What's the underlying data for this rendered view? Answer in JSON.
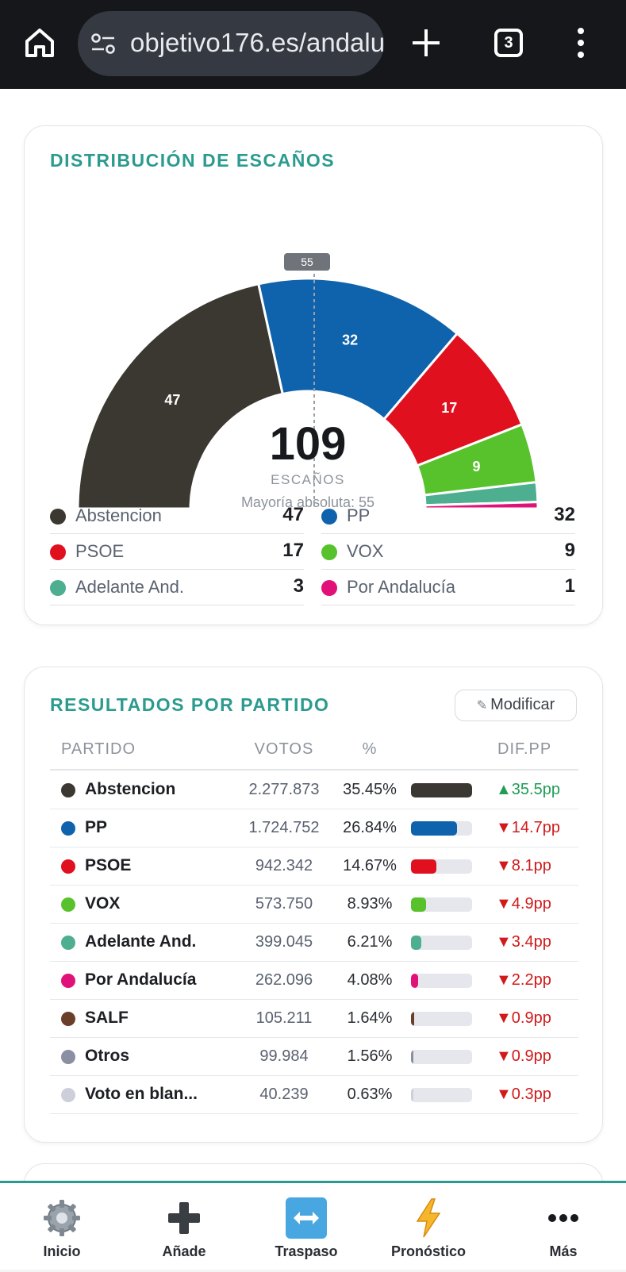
{
  "browser": {
    "url": "objetivo176.es/andalu",
    "tab_count": "3"
  },
  "seats_card": {
    "title": "DISTRIBUCIÓN DE ESCAÑOS",
    "majority_marker": "55",
    "total": "109",
    "total_label": "ESCAÑOS",
    "majority_text": "Mayoría absoluta: 55"
  },
  "chart_data": {
    "type": "pie",
    "subtype": "hemicycle",
    "total": 109,
    "majority": 55,
    "categories": [
      "Abstencion",
      "PP",
      "PSOE",
      "VOX",
      "Adelante And.",
      "Por Andalucía"
    ],
    "values": [
      47,
      32,
      17,
      9,
      3,
      1
    ],
    "slice_labels": [
      "47",
      "32",
      "17",
      "9",
      "",
      ""
    ],
    "colors": [
      "#3b3731",
      "#0f62ac",
      "#e0101e",
      "#58c22c",
      "#4dae90",
      "#e0127a"
    ],
    "legend": [
      {
        "name": "Abstencion",
        "value": "47",
        "color": "#3b3731"
      },
      {
        "name": "PP",
        "value": "32",
        "color": "#0f62ac"
      },
      {
        "name": "PSOE",
        "value": "17",
        "color": "#e0101e"
      },
      {
        "name": "VOX",
        "value": "9",
        "color": "#58c22c"
      },
      {
        "name": "Adelante And.",
        "value": "3",
        "color": "#4dae90"
      },
      {
        "name": "Por Andalucía",
        "value": "1",
        "color": "#e0127a"
      }
    ]
  },
  "results_card": {
    "title": "RESULTADOS POR PARTIDO",
    "modify_label": "Modificar",
    "headers": {
      "party": "PARTIDO",
      "votes": "VOTOS",
      "pct": "%",
      "dif": "DIF.PP"
    },
    "rows": [
      {
        "name": "Abstencion",
        "votes": "2.277.873",
        "pct": "35.45%",
        "share": 35.45,
        "dif": "▲35.5pp",
        "trend": "up",
        "color": "#3b3731"
      },
      {
        "name": "PP",
        "votes": "1.724.752",
        "pct": "26.84%",
        "share": 26.84,
        "dif": "▼14.7pp",
        "trend": "down",
        "color": "#0f62ac"
      },
      {
        "name": "PSOE",
        "votes": "942.342",
        "pct": "14.67%",
        "share": 14.67,
        "dif": "▼8.1pp",
        "trend": "down",
        "color": "#e0101e"
      },
      {
        "name": "VOX",
        "votes": "573.750",
        "pct": "8.93%",
        "share": 8.93,
        "dif": "▼4.9pp",
        "trend": "down",
        "color": "#58c22c"
      },
      {
        "name": "Adelante And.",
        "votes": "399.045",
        "pct": "6.21%",
        "share": 6.21,
        "dif": "▼3.4pp",
        "trend": "down",
        "color": "#4dae90"
      },
      {
        "name": "Por Andalucía",
        "votes": "262.096",
        "pct": "4.08%",
        "share": 4.08,
        "dif": "▼2.2pp",
        "trend": "down",
        "color": "#e0127a"
      },
      {
        "name": "SALF",
        "votes": "105.211",
        "pct": "1.64%",
        "share": 1.64,
        "dif": "▼0.9pp",
        "trend": "down",
        "color": "#6b3e2a"
      },
      {
        "name": "Otros",
        "votes": "99.984",
        "pct": "1.56%",
        "share": 1.56,
        "dif": "▼0.9pp",
        "trend": "down",
        "color": "#8a8fa3"
      },
      {
        "name": "Voto en blan...",
        "votes": "40.239",
        "pct": "0.63%",
        "share": 0.63,
        "dif": "▼0.3pp",
        "trend": "down",
        "color": "#cdd0da"
      }
    ],
    "colors": {
      "up": "#1f9d55",
      "down": "#d11a1a"
    }
  },
  "bottom_nav": [
    {
      "label": "Inicio",
      "icon": "gear-icon"
    },
    {
      "label": "Añade",
      "icon": "plus-icon"
    },
    {
      "label": "Traspaso",
      "icon": "transfer-arrows-icon"
    },
    {
      "label": "Pronóstico",
      "icon": "lightning-icon"
    },
    {
      "label": "Más",
      "icon": "more-dots-icon"
    }
  ]
}
